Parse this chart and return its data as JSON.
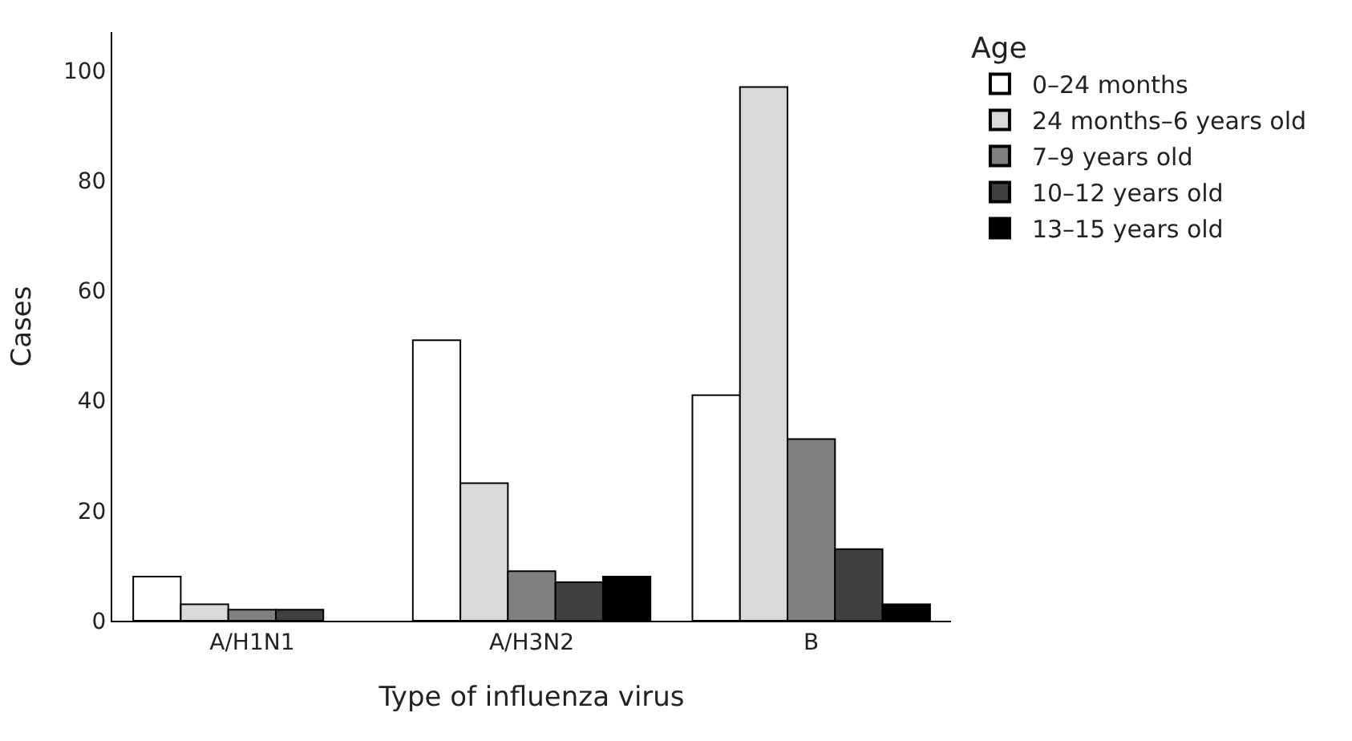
{
  "chart_data": {
    "type": "bar",
    "xlabel": "Type of influenza virus",
    "ylabel": "Cases",
    "legend_title": "Age",
    "categories": [
      "A/H1N1",
      "A/H3N2",
      "B"
    ],
    "series": [
      {
        "name": "0–24 months",
        "color": "#ffffff",
        "values": [
          8,
          51,
          41
        ]
      },
      {
        "name": "24 months–6 years old",
        "color": "#d9d9d9",
        "values": [
          3,
          25,
          97
        ]
      },
      {
        "name": "7–9 years old",
        "color": "#808080",
        "values": [
          2,
          9,
          33
        ]
      },
      {
        "name": "10–12 years old",
        "color": "#404040",
        "values": [
          2,
          7,
          13
        ]
      },
      {
        "name": "13–15 years old",
        "color": "#000000",
        "values": [
          0,
          8,
          3
        ]
      }
    ],
    "ylim": [
      0,
      107
    ],
    "yticks": [
      0,
      20,
      40,
      60,
      80,
      100
    ],
    "legend": "top right"
  }
}
